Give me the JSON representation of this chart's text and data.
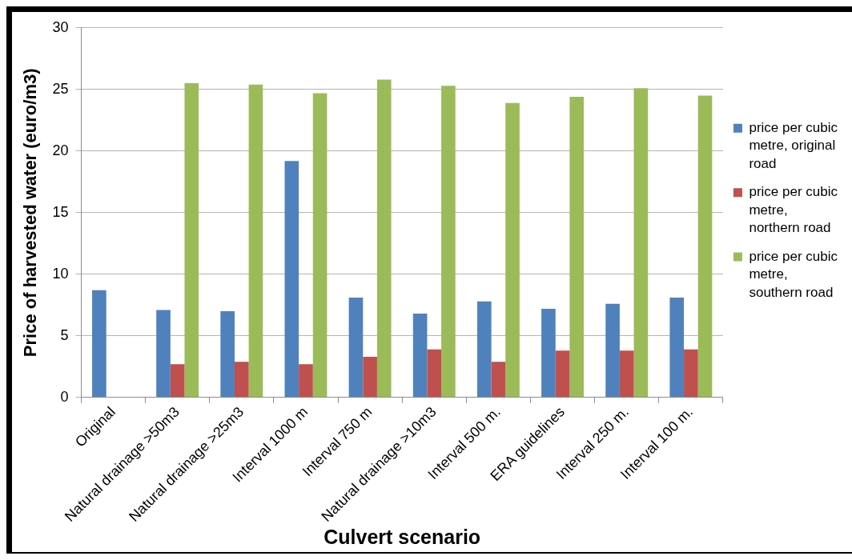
{
  "chart_data": {
    "type": "bar",
    "xlabel": "Culvert scenario",
    "ylabel": "Price of harvested water (euro/m3)",
    "categories": [
      "Original",
      "Natural drainage >50m3",
      "Natural drainage >25m3",
      "Interval 1000 m",
      "Interval 750 m",
      "Natural drainage >10m3",
      "Interval 500 m.",
      "ERA guidelines",
      "Interval 250 m.",
      "Interval 100 m."
    ],
    "series": [
      {
        "name": "price per cubic metre, original road",
        "color": "#4f81bd",
        "values": [
          8.7,
          7.1,
          7.0,
          19.2,
          8.1,
          6.8,
          7.8,
          7.2,
          7.6,
          8.1
        ]
      },
      {
        "name": "price per cubic metre, northern road",
        "color": "#c0504d",
        "values": [
          null,
          2.7,
          2.9,
          2.7,
          3.3,
          3.9,
          2.9,
          3.8,
          3.8,
          3.9
        ]
      },
      {
        "name": "price per cubic metre, southern road",
        "color": "#9bbb59",
        "values": [
          null,
          25.5,
          25.4,
          24.7,
          25.8,
          25.3,
          23.9,
          24.4,
          25.1,
          24.5
        ]
      }
    ],
    "ylim": [
      0,
      30
    ],
    "yticks": [
      0,
      5,
      10,
      15,
      20,
      25,
      30
    ],
    "grid": "y",
    "legend": "right"
  }
}
